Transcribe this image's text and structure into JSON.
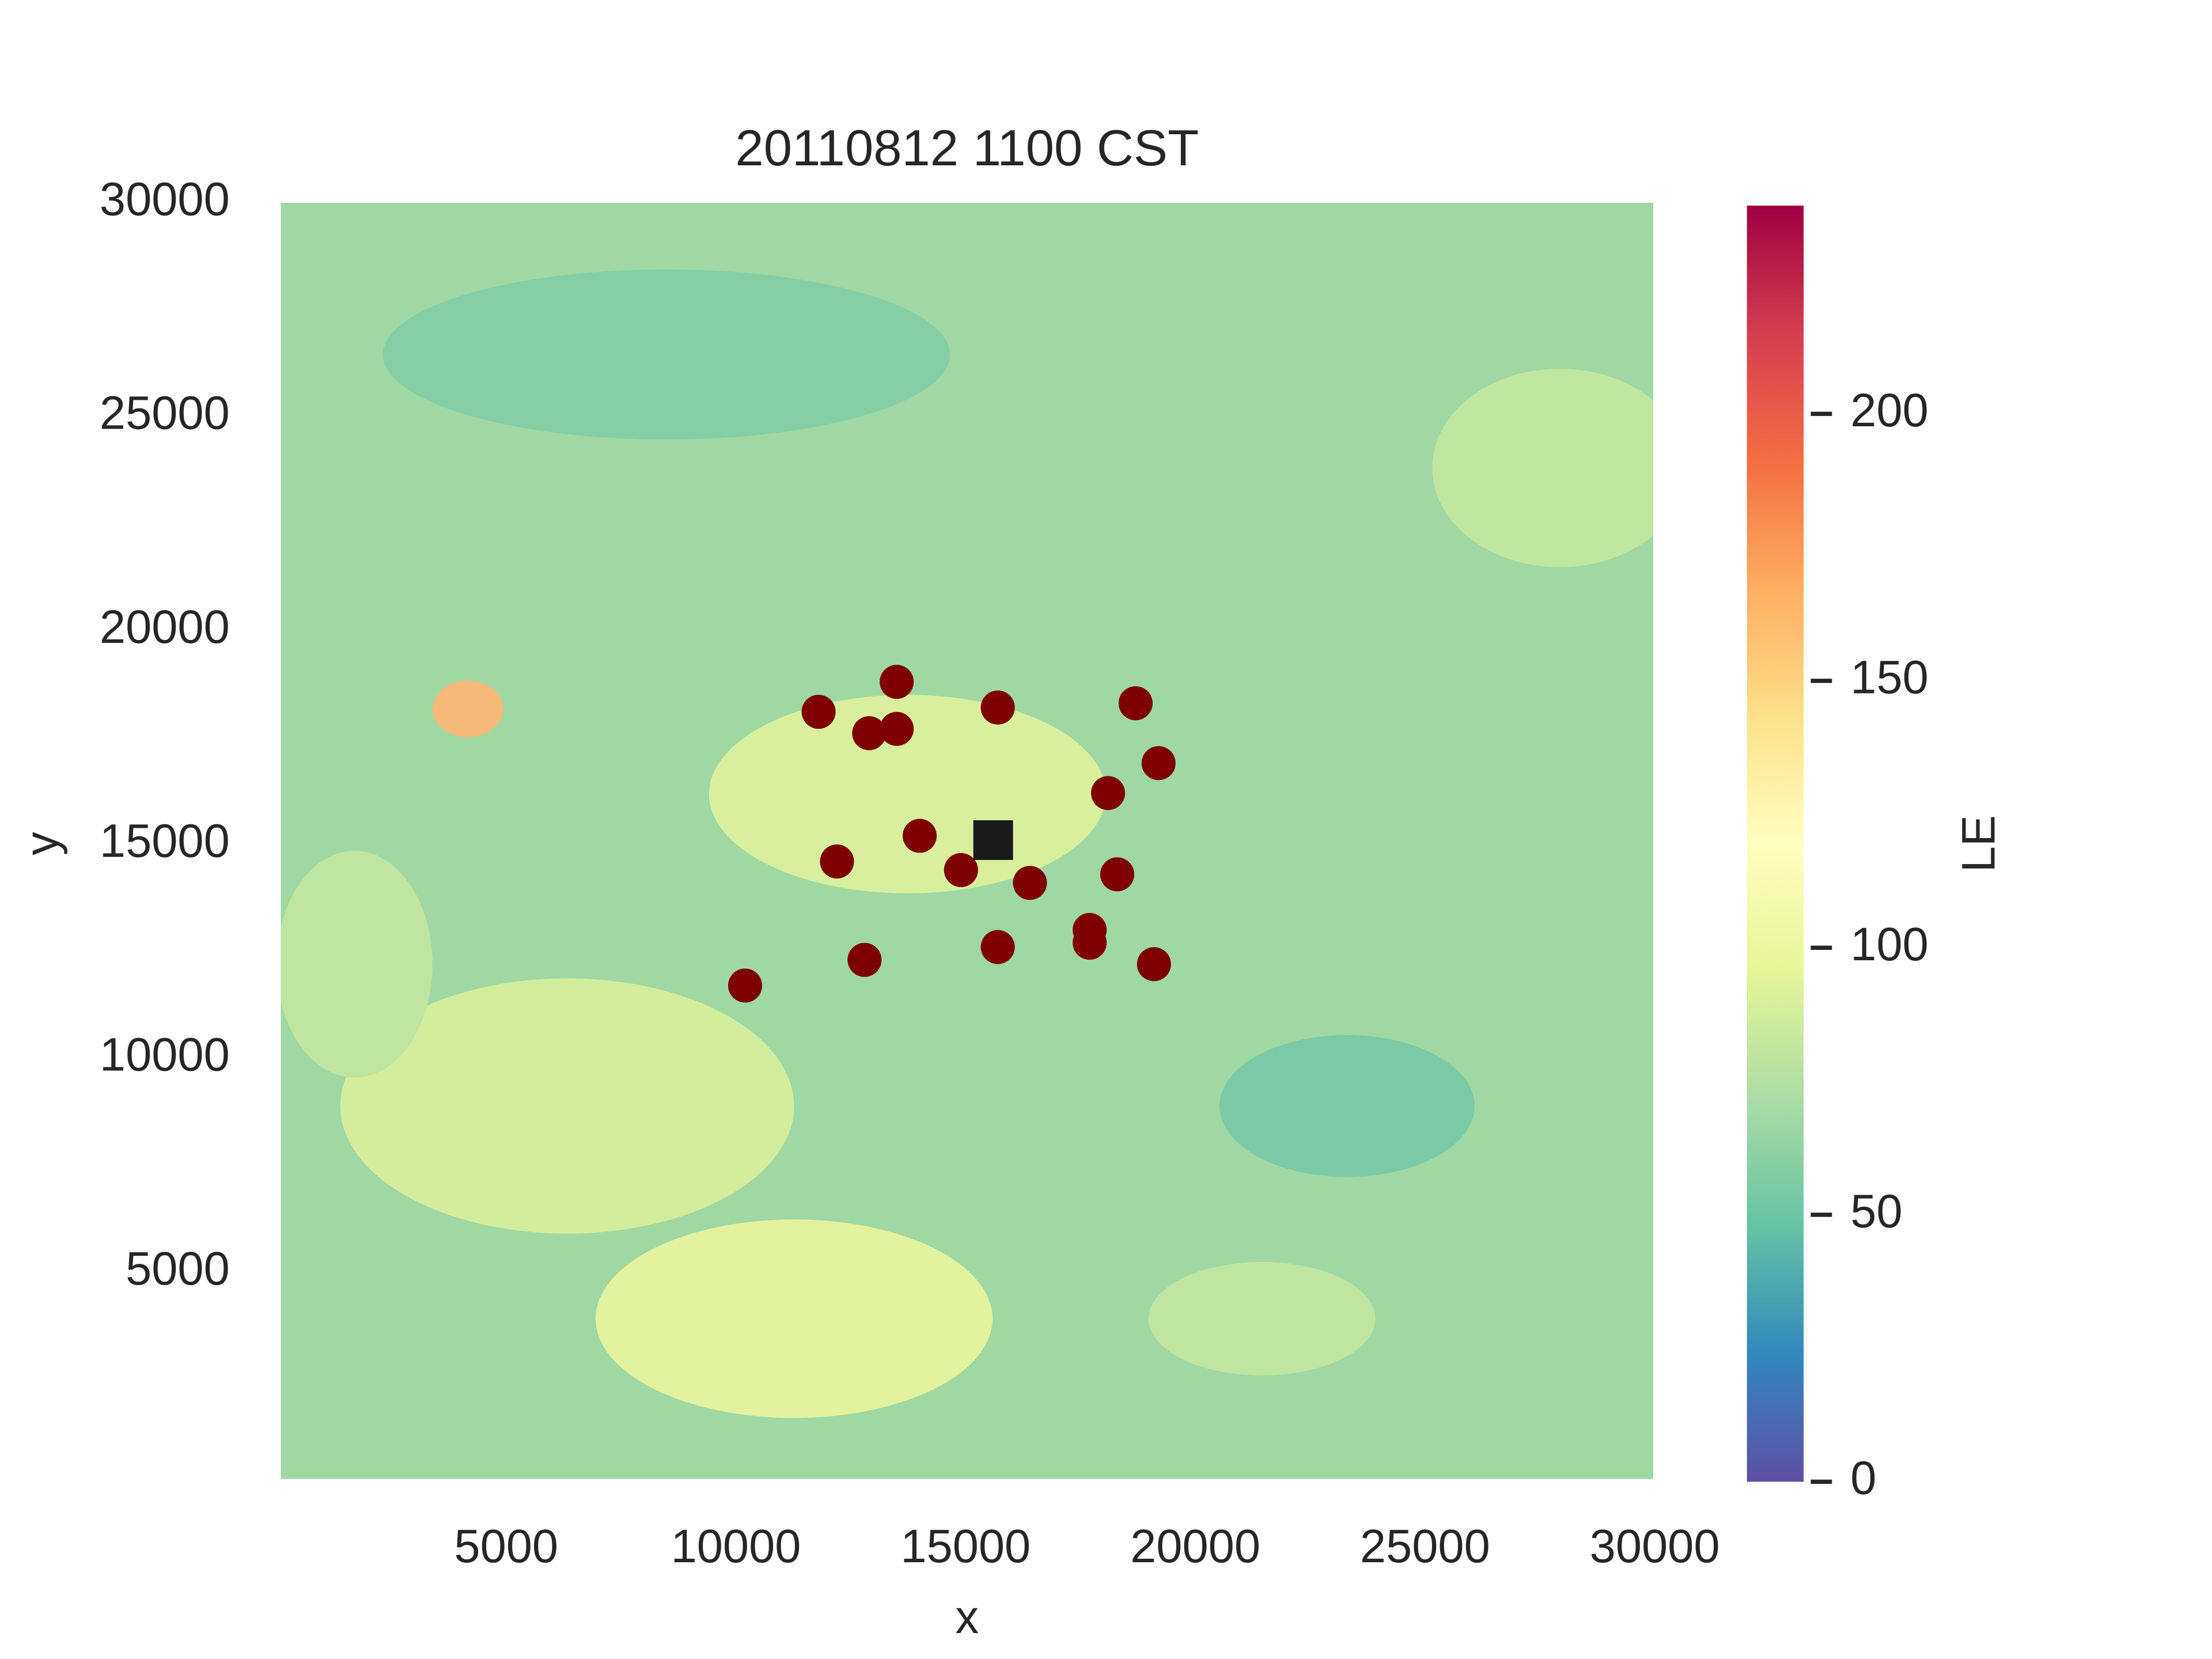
{
  "chart_data": {
    "type": "scatter",
    "title": "20110812 1100 CST",
    "x_label": "x",
    "y_label": "y",
    "xlim": [
      0,
      30000
    ],
    "ylim": [
      0,
      30000
    ],
    "xticks": [
      5000,
      10000,
      15000,
      20000,
      25000,
      30000
    ],
    "yticks": [
      5000,
      10000,
      15000,
      20000,
      25000,
      30000
    ],
    "points": {
      "color": "#7f0000",
      "x": [
        13500,
        11800,
        12900,
        13500,
        15700,
        18700,
        19200,
        18100,
        14000,
        12200,
        14900,
        16400,
        18300,
        15700,
        17700,
        17700,
        12800,
        19100,
        10200
      ],
      "y": [
        18800,
        18100,
        17600,
        17700,
        18200,
        18300,
        16900,
        16200,
        15200,
        14600,
        14400,
        14100,
        14300,
        12600,
        13000,
        12700,
        12300,
        12200,
        11700
      ]
    },
    "marker": {
      "color": "#1a1a1a",
      "x": 15600,
      "y": 15100
    },
    "colorbar": {
      "label": "LE",
      "lim": [
        0,
        239
      ],
      "ticks": [
        0,
        50,
        100,
        150,
        200
      ],
      "colors": [
        "#5e4fa2",
        "#3288bd",
        "#66c2a5",
        "#abdda4",
        "#e6f598",
        "#ffffbf",
        "#fee08b",
        "#fdae61",
        "#f46d43",
        "#d53e4f",
        "#9e0142"
      ]
    }
  }
}
